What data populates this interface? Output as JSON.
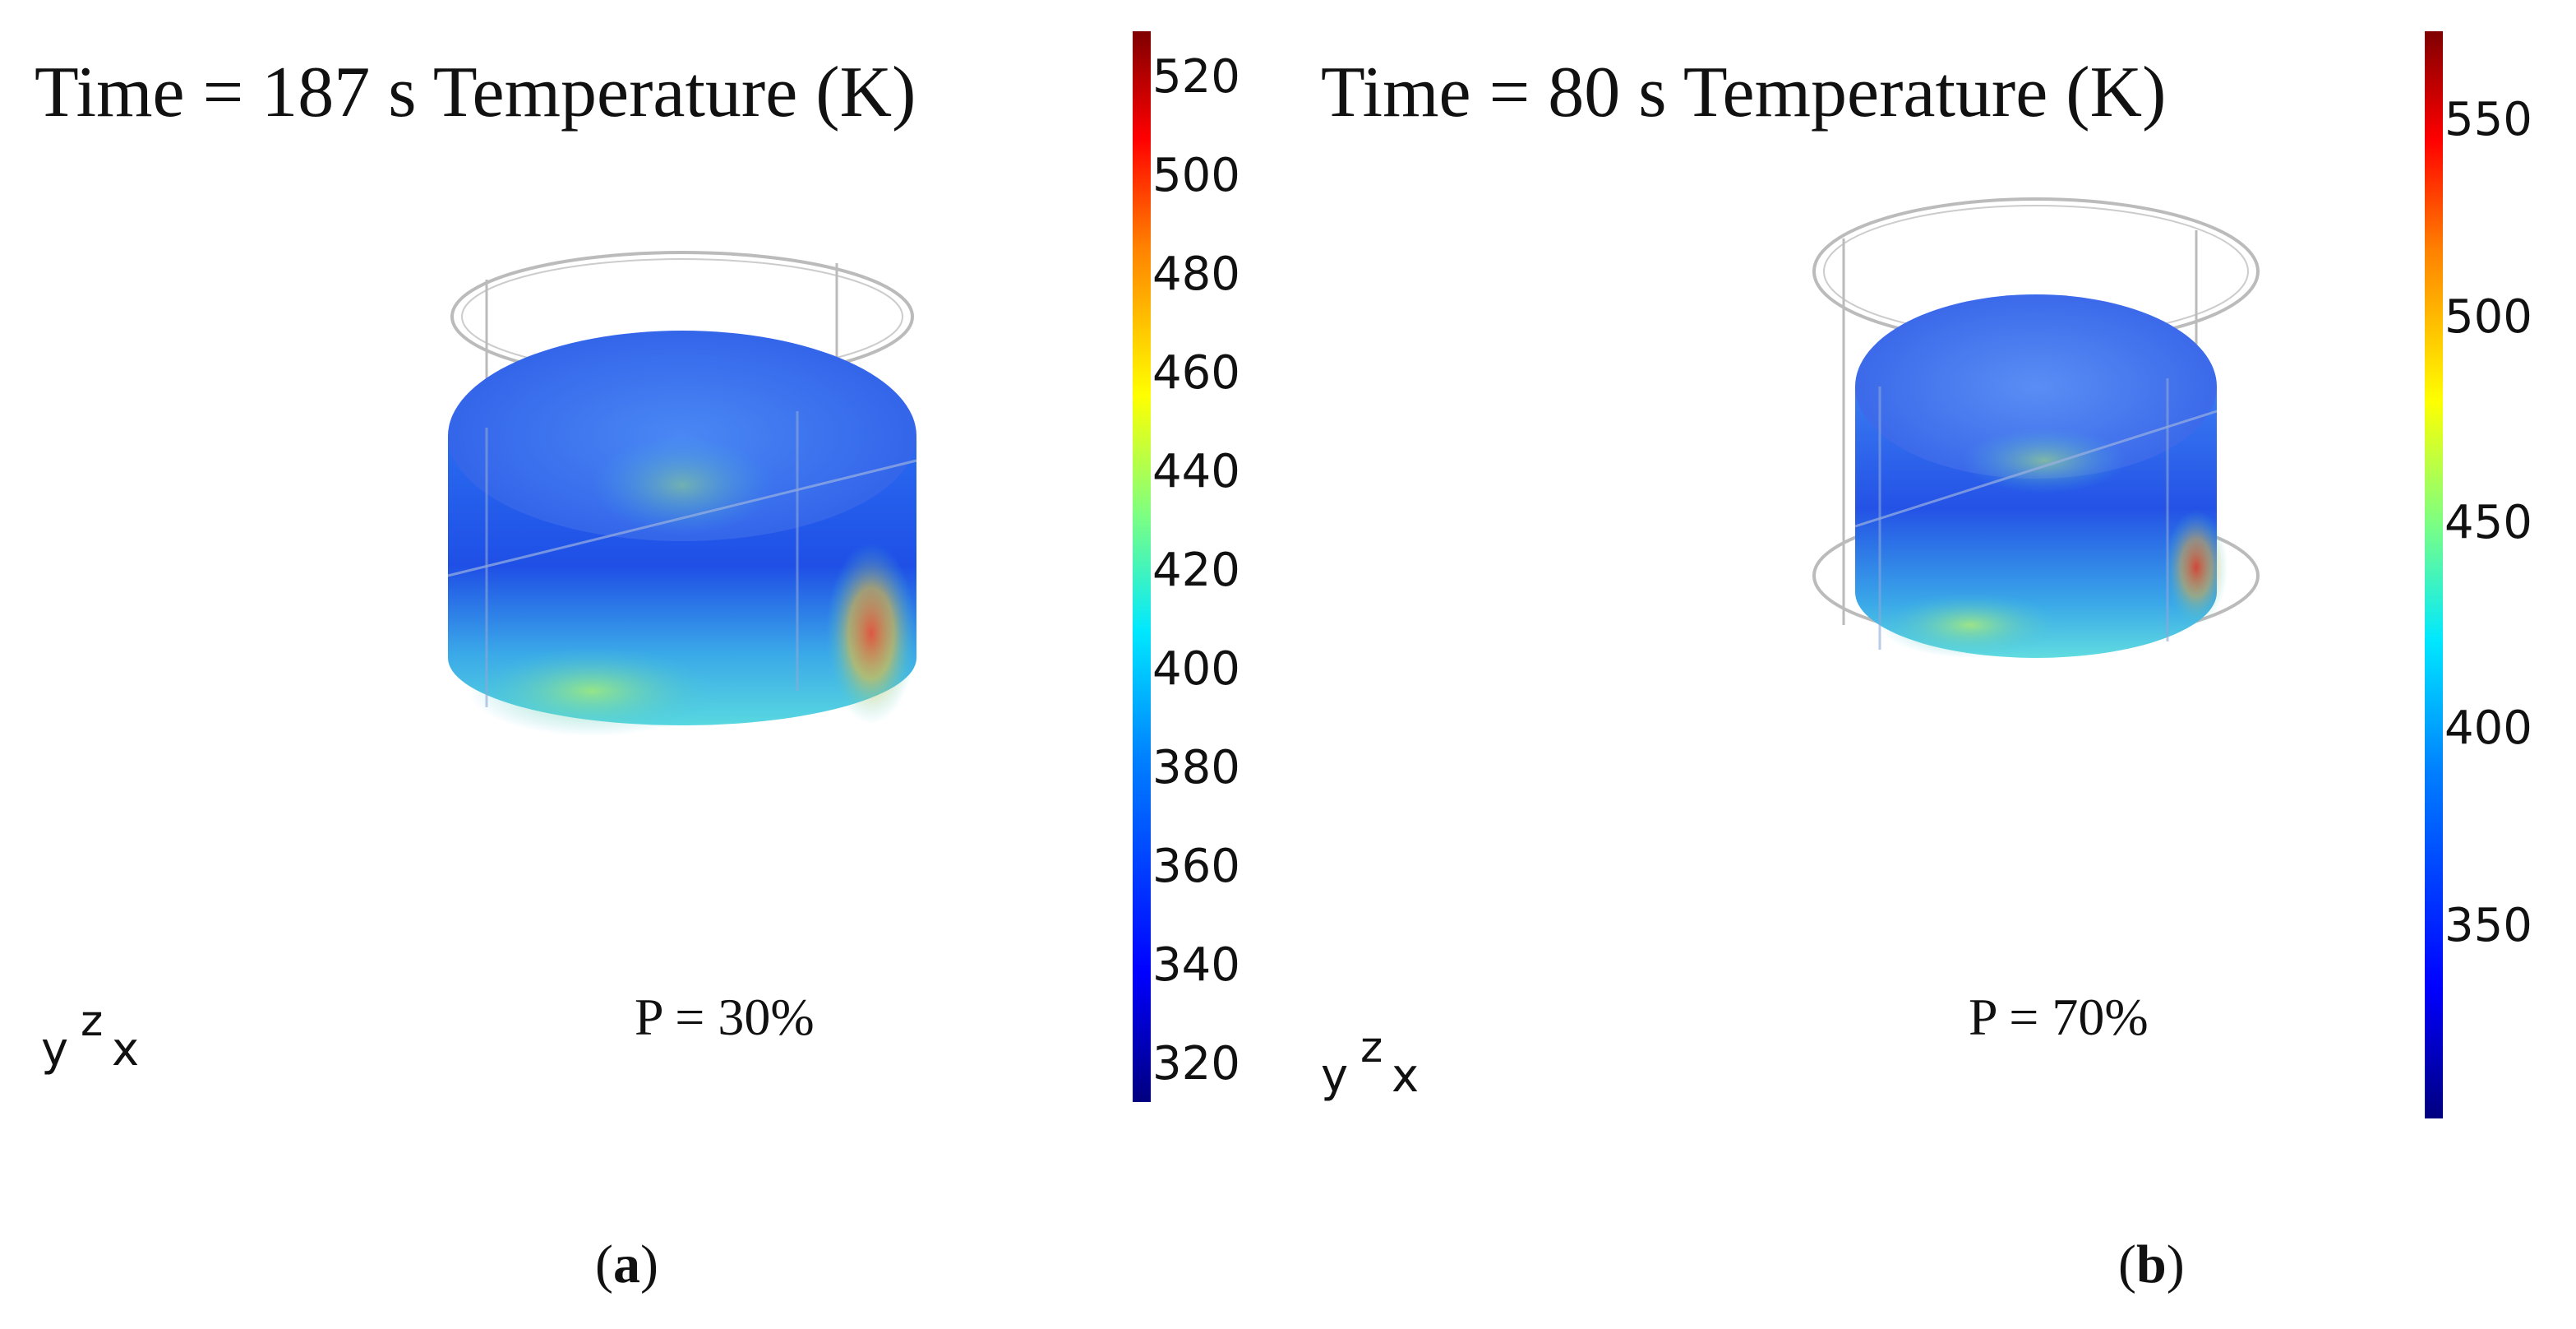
{
  "panels": [
    {
      "title": "Time = 187 s Temperature (K)",
      "power_label": "P = 30%",
      "sublabel": "a",
      "colorbar_ticks": [
        "520",
        "500",
        "480",
        "460",
        "440",
        "420",
        "400",
        "380",
        "360",
        "340",
        "320"
      ],
      "axis_labels": {
        "y": "y",
        "z": "z",
        "x": "x"
      }
    },
    {
      "title": "Time = 80 s Temperature (K)",
      "power_label": "P = 70%",
      "sublabel": "b",
      "colorbar_ticks": [
        "550",
        "500",
        "450",
        "400",
        "350"
      ],
      "axis_labels": {
        "y": "y",
        "z": "z",
        "x": "x"
      }
    }
  ]
}
